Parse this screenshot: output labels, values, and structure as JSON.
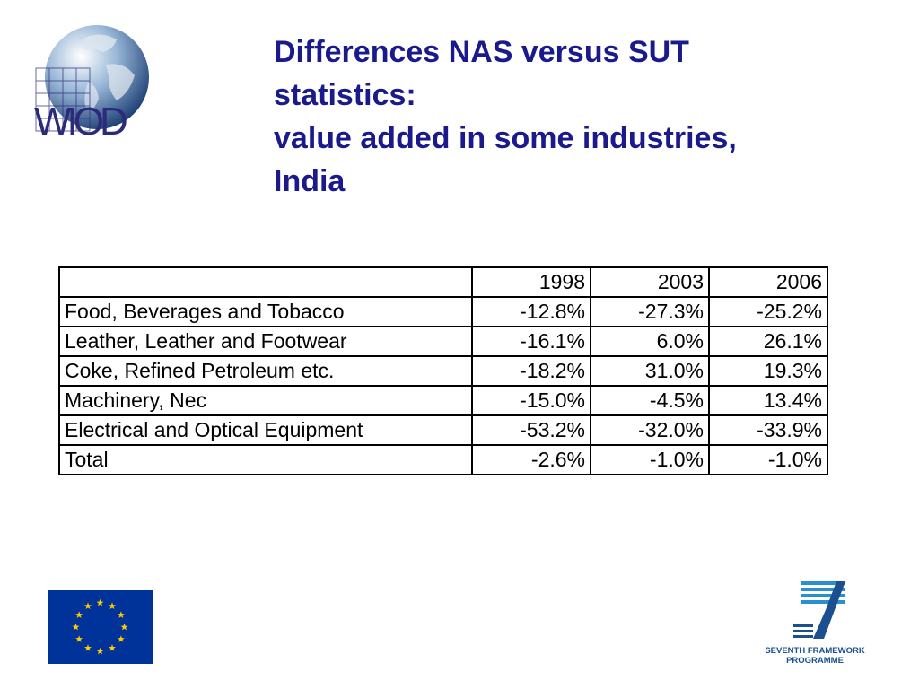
{
  "logo": {
    "text": "WIOD",
    "icon": "globe-icon"
  },
  "title": {
    "line1": "Differences NAS versus SUT",
    "line2": "statistics:",
    "line3": "value added in some industries,",
    "line4": "India"
  },
  "table": {
    "header": [
      "",
      "1998",
      "2003",
      "2006"
    ],
    "rows": [
      {
        "label": "Food, Beverages and Tobacco",
        "values": [
          "-12.8%",
          "-27.3%",
          "-25.2%"
        ]
      },
      {
        "label": "Leather, Leather and Footwear",
        "values": [
          "-16.1%",
          "6.0%",
          "26.1%"
        ]
      },
      {
        "label": "Coke, Refined Petroleum etc.",
        "values": [
          "-18.2%",
          "31.0%",
          "19.3%"
        ]
      },
      {
        "label": "Machinery, Nec",
        "values": [
          "-15.0%",
          "-4.5%",
          "13.4%"
        ]
      },
      {
        "label": "Electrical and Optical Equipment",
        "values": [
          "-53.2%",
          "-32.0%",
          "-33.9%"
        ]
      },
      {
        "label": "Total",
        "values": [
          "-2.6%",
          "-1.0%",
          "-1.0%"
        ]
      }
    ]
  },
  "footer": {
    "eu_flag": {
      "icon": "eu-flag-icon",
      "color": "#003399",
      "star_color": "#ffcc00"
    },
    "fp7": {
      "line1": "SEVENTH FRAMEWORK",
      "line2": "PROGRAMME",
      "icon": "fp7-logo-icon"
    }
  },
  "colors": {
    "title": "#1a1a8c",
    "brand_dark": "#2b2b7a"
  }
}
